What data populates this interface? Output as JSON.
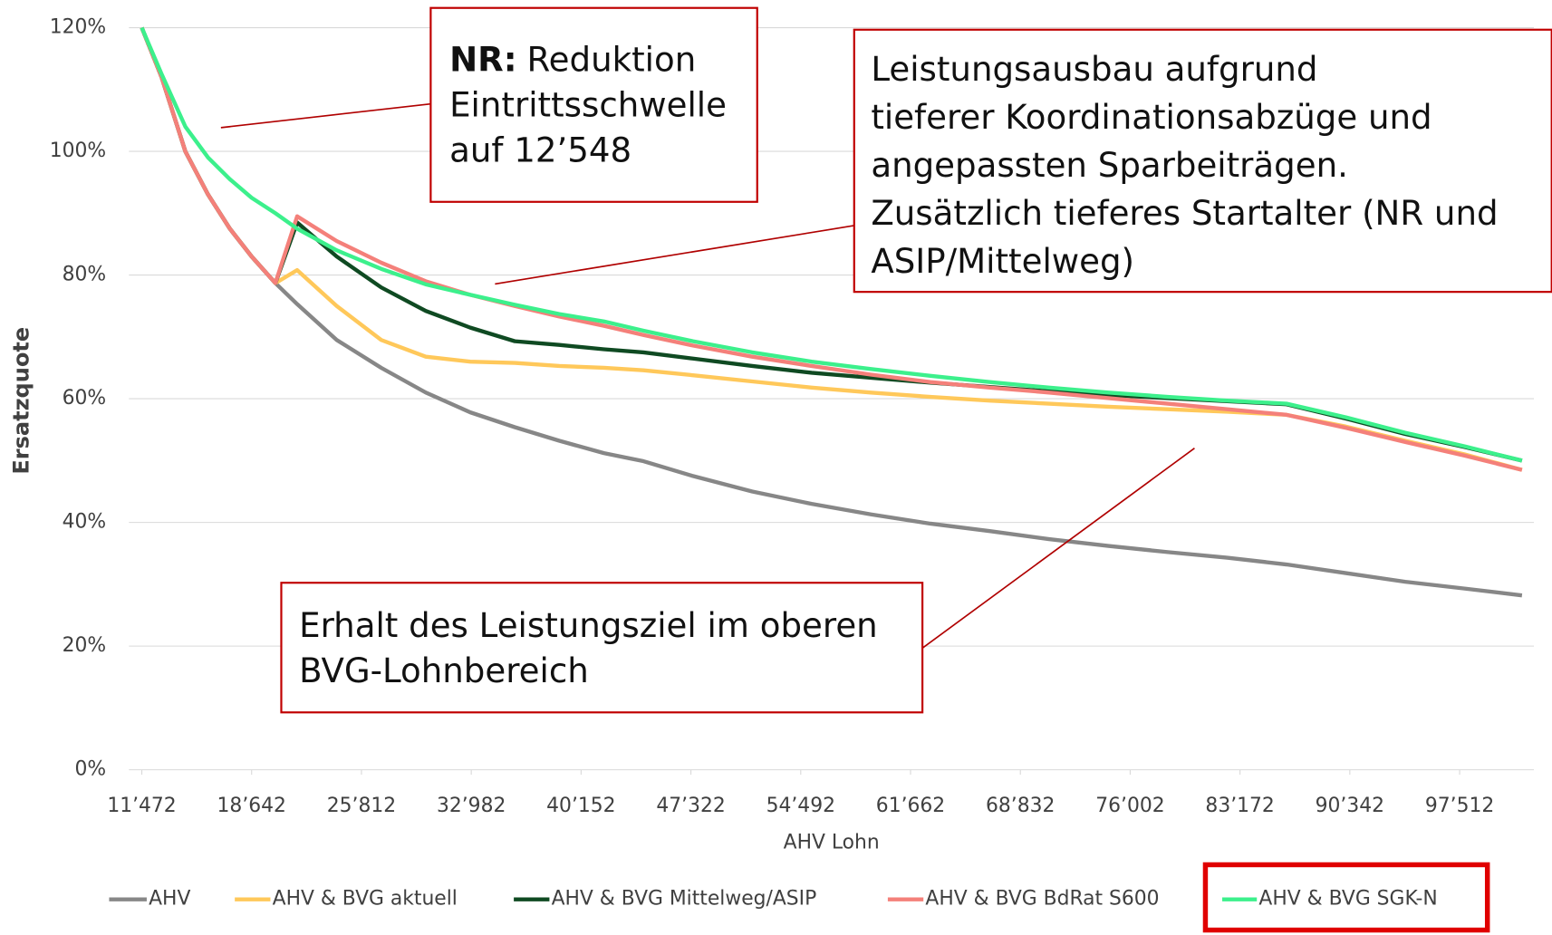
{
  "chart_data": {
    "type": "line",
    "x_label": "AHV Lohn",
    "y_label": "Ersatzquote",
    "x": [
      11472,
      12764,
      14314,
      15800,
      17221,
      18642,
      20192,
      21614,
      24197,
      27104,
      30011,
      32917,
      35824,
      38731,
      41638,
      44222,
      47452,
      51327,
      55203,
      59078,
      62954,
      66830,
      70705,
      74581,
      78457,
      82333,
      86208,
      90084,
      93959,
      97835,
      101582
    ],
    "series": [
      {
        "name": "AHV",
        "color": "#878787",
        "values": [
          120,
          112,
          100,
          93,
          87.5,
          83,
          78.7,
          75.3,
          69.5,
          65,
          61,
          57.8,
          55.4,
          53.2,
          51.2,
          49.9,
          47.5,
          45,
          43,
          41.3,
          39.8,
          38.6,
          37.3,
          36.2,
          35.2,
          34.3,
          33.2,
          31.8,
          30.4,
          29.3,
          28.2
        ]
      },
      {
        "name": "AHV & BVG aktuell",
        "color": "#ffc85a",
        "values": [
          120,
          112,
          100,
          93,
          87.5,
          83,
          78.7,
          80.8,
          75,
          69.5,
          66.8,
          66,
          65.8,
          65.3,
          65,
          64.6,
          63.8,
          62.8,
          61.8,
          61,
          60.3,
          59.7,
          59.2,
          58.7,
          58.3,
          57.9,
          57.4,
          55.5,
          53.2,
          51,
          48.5
        ]
      },
      {
        "name": "AHV & BVG Mittelweg/ASIP",
        "color": "#0f4a22",
        "values": [
          120,
          112,
          100,
          93,
          87.5,
          83,
          78.7,
          88.5,
          83,
          78,
          74.2,
          71.5,
          69.3,
          68.7,
          68,
          67.5,
          66.5,
          65.3,
          64.2,
          63.4,
          62.6,
          61.9,
          61.2,
          60.6,
          60.1,
          59.6,
          59.1,
          56.8,
          54.3,
          52.2,
          50
        ]
      },
      {
        "name": "AHV & BVG BdRat S600",
        "color": "#f4807a",
        "values": [
          120,
          112,
          100,
          93,
          87.5,
          83,
          78.7,
          89.5,
          85.5,
          82,
          79,
          76.8,
          75,
          73.3,
          71.8,
          70.3,
          68.6,
          66.8,
          65.3,
          63.9,
          62.7,
          61.8,
          61,
          60.1,
          59.2,
          58.3,
          57.4,
          55.3,
          53,
          50.8,
          48.5
        ]
      },
      {
        "name": "AHV & BVG SGK-N",
        "color": "#3cf08c",
        "values": [
          120,
          112.5,
          104,
          99,
          95.5,
          92.5,
          90,
          87.5,
          84,
          81,
          78.5,
          76.8,
          75.2,
          73.7,
          72.5,
          71,
          69.3,
          67.5,
          66,
          64.8,
          63.7,
          62.7,
          61.8,
          61,
          60.3,
          59.7,
          59.2,
          57,
          54.5,
          52.3,
          50
        ]
      }
    ],
    "xlim": [
      10630,
      102360
    ],
    "xticks": [
      {
        "value": 11472,
        "label": "11’472"
      },
      {
        "value": 18642,
        "label": "18’642"
      },
      {
        "value": 25812,
        "label": "25’812"
      },
      {
        "value": 32982,
        "label": "32’982"
      },
      {
        "value": 40152,
        "label": "40’152"
      },
      {
        "value": 47322,
        "label": "47’322"
      },
      {
        "value": 54492,
        "label": "54’492"
      },
      {
        "value": 61662,
        "label": "61’662"
      },
      {
        "value": 68832,
        "label": "68’832"
      },
      {
        "value": 76002,
        "label": "76’002"
      },
      {
        "value": 83172,
        "label": "83’172"
      },
      {
        "value": 90342,
        "label": "90’342"
      },
      {
        "value": 97512,
        "label": "97’512"
      }
    ],
    "ylim": [
      0,
      120
    ],
    "yticks": [
      {
        "value": 0,
        "label": "0%"
      },
      {
        "value": 20,
        "label": "20%"
      },
      {
        "value": 40,
        "label": "40%"
      },
      {
        "value": 60,
        "label": "60%"
      },
      {
        "value": 80,
        "label": "80%"
      },
      {
        "value": 100,
        "label": "100%"
      },
      {
        "value": 120,
        "label": "120%"
      }
    ],
    "grid": true,
    "legend": "bottom",
    "annotations": [
      {
        "lead": "NR:",
        "lines": [
          "Reduktion",
          "Eintrittsschwelle",
          "auf 12’548"
        ]
      },
      {
        "lines": [
          "Leistungsausbau aufgrund",
          "tieferer Koordinationsabzüge und",
          "angepassten Sparbeiträgen.",
          "Zusätzlich tieferes Startalter (NR und",
          "ASIP/Mittelweg)"
        ]
      },
      {
        "lines": [
          "Erhalt des Leistungsziel im oberen",
          "BVG-Lohnbereich"
        ]
      }
    ]
  }
}
